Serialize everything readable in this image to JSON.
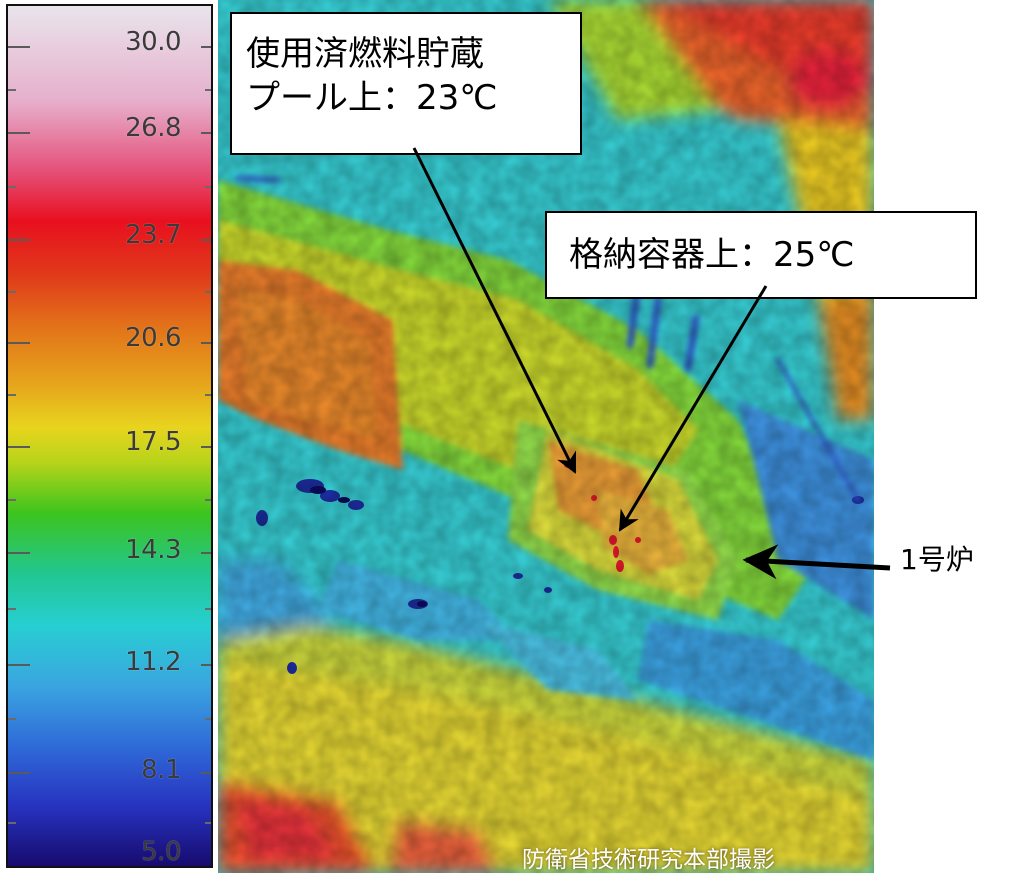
{
  "color_scale": {
    "labels": [
      "30.0",
      "26.8",
      "23.7",
      "20.6",
      "17.5",
      "14.3",
      "11.2",
      "8.1",
      "5.0"
    ]
  },
  "thermal_image": {
    "palette": [
      "#170b6e",
      "#2733c0",
      "#3aa5e0",
      "#27cfd2",
      "#3cc41e",
      "#e8d41e",
      "#e2701a",
      "#e8101f",
      "#e6b0cc",
      "#e9e4ec"
    ]
  },
  "annotations": {
    "pool_line1": "使用済燃料貯蔵",
    "pool_line2": "プール上：23℃",
    "containment": "格納容器上：25℃",
    "unit": "1号炉"
  },
  "credit": "防衛省技術研究本部撮影"
}
